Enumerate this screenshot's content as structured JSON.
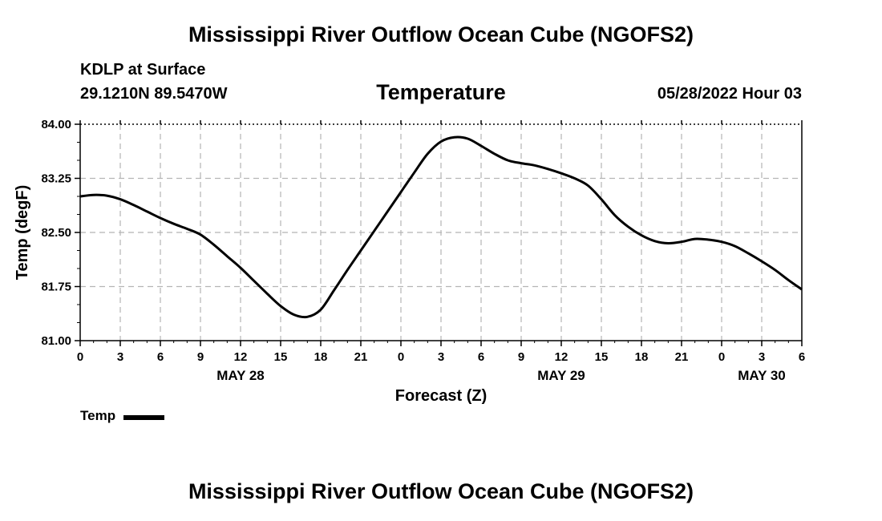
{
  "header": {
    "title": "Mississippi River Outflow Ocean Cube (NGOFS2)",
    "station": "KDLP at Surface",
    "coords": "29.1210N  89.5470W",
    "chart_title": "Temperature",
    "date": "05/28/2022 Hour 03"
  },
  "footer": {
    "title": "Mississippi River Outflow Ocean Cube (NGOFS2)"
  },
  "chart_data": {
    "type": "line",
    "title": "Temperature",
    "xlabel": "Forecast (Z)",
    "ylabel": "Temp (degF)",
    "xlim": [
      0,
      54
    ],
    "ylim": [
      81.0,
      84.0
    ],
    "grid": true,
    "legend_position": "bottom-left",
    "x_tick_values": [
      0,
      3,
      6,
      9,
      12,
      15,
      18,
      21,
      24,
      27,
      30,
      33,
      36,
      39,
      42,
      45,
      48,
      51,
      54
    ],
    "x_tick_labels": [
      "0",
      "3",
      "6",
      "9",
      "12",
      "15",
      "18",
      "21",
      "0",
      "3",
      "6",
      "9",
      "12",
      "15",
      "18",
      "21",
      "0",
      "3",
      "6"
    ],
    "y_tick_values": [
      81.0,
      81.75,
      82.5,
      83.25,
      84.0
    ],
    "y_tick_labels": [
      "81.00",
      "81.75",
      "82.50",
      "83.25",
      "84.00"
    ],
    "date_labels": [
      {
        "x": 12,
        "label": "MAY 28"
      },
      {
        "x": 36,
        "label": "MAY 29"
      },
      {
        "x": 51,
        "label": "MAY 30"
      }
    ],
    "series": [
      {
        "name": "Temp",
        "color": "#000000",
        "x": [
          0,
          1,
          2,
          3,
          4,
          5,
          6,
          7,
          8,
          9,
          10,
          11,
          12,
          13,
          14,
          15,
          16,
          17,
          18,
          19,
          20,
          21,
          22,
          23,
          24,
          25,
          26,
          27,
          28,
          29,
          30,
          31,
          32,
          33,
          34,
          35,
          36,
          37,
          38,
          39,
          40,
          41,
          42,
          43,
          44,
          45,
          46,
          47,
          48,
          49,
          50,
          51,
          52,
          53,
          54
        ],
        "y": [
          83.0,
          83.02,
          83.01,
          82.96,
          82.88,
          82.79,
          82.7,
          82.62,
          82.55,
          82.47,
          82.33,
          82.17,
          82.01,
          81.83,
          81.65,
          81.48,
          81.36,
          81.33,
          81.43,
          81.7,
          81.98,
          82.25,
          82.52,
          82.79,
          83.06,
          83.33,
          83.59,
          83.76,
          83.82,
          83.8,
          83.7,
          83.59,
          83.5,
          83.46,
          83.43,
          83.38,
          83.32,
          83.25,
          83.15,
          82.96,
          82.74,
          82.58,
          82.46,
          82.38,
          82.35,
          82.37,
          82.41,
          82.4,
          82.37,
          82.31,
          82.21,
          82.1,
          81.98,
          81.84,
          81.71
        ]
      }
    ]
  },
  "legend": {
    "label": "Temp"
  }
}
